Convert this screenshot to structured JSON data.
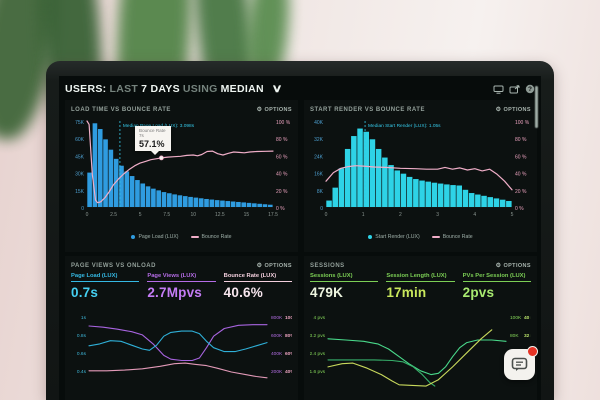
{
  "header": {
    "segments": [
      {
        "text": "USERS:",
        "dim": false
      },
      {
        "text": "LAST",
        "dim": true
      },
      {
        "text": "7 DAYS",
        "dim": false
      },
      {
        "text": "USING",
        "dim": true
      },
      {
        "text": "MEDIAN",
        "dim": false
      }
    ],
    "chevron": "∨",
    "toolbar_icons": [
      "monitor-icon",
      "share-icon",
      "help-icon"
    ]
  },
  "options_label": "OPTIONS",
  "gear_icon": "⚙",
  "panels": [
    {
      "title": "LOAD TIME VS BOUNCE RATE",
      "options": "OPTIONS"
    },
    {
      "title": "START RENDER VS BOUNCE RATE",
      "options": "OPTIONS"
    },
    {
      "title": "PAGE VIEWS VS ONLOAD",
      "options": "OPTIONS",
      "metrics": [
        {
          "label": "Page Load (LUX)",
          "value": "0.7s",
          "color": "#35b9e4",
          "value_color": "#45d0f2"
        },
        {
          "label": "Page Views (LUX)",
          "value": "2.7Mpvs",
          "color": "#b56ce6",
          "value_color": "#c47cf5"
        },
        {
          "label": "Bounce Rate (LUX)",
          "value": "40.6%",
          "color": "#f3cfdd",
          "value_color": "#f8e6ee"
        }
      ]
    },
    {
      "title": "SESSIONS",
      "options": "OPTIONS",
      "metrics": [
        {
          "label": "Sessions (LUX)",
          "value": "479K",
          "color": "#7ccf55",
          "value_color": "#eef6e0"
        },
        {
          "label": "Session Length (LUX)",
          "value": "17min",
          "color": "#7ccf55",
          "value_color": "#c9e85c"
        },
        {
          "label": "PVs Per Session (LUX)",
          "value": "2pvs",
          "color": "#7ccf55",
          "value_color": "#a8ea70"
        }
      ]
    }
  ],
  "chart_data": [
    {
      "type": "bar",
      "title": "LOAD TIME VS BOUNCE RATE",
      "bar_color": "#2f9ce0",
      "line_color": "#f0aec8",
      "median_color": "#35c8e8",
      "left_axis": [
        "75K",
        "60K",
        "45K",
        "30K",
        "15K",
        "0"
      ],
      "right_axis": [
        "100 %",
        "80 %",
        "60 %",
        "40 %",
        "20 %",
        "0 %"
      ],
      "x_ticks": [
        "0",
        "2.5",
        "5",
        "7.5",
        "10",
        "12.5",
        "15",
        "17.5"
      ],
      "x_max": 17.5,
      "bar_max": 75,
      "bar_unit": "K sessions",
      "bars": [
        30,
        73,
        68,
        59,
        50,
        42,
        36,
        31,
        27,
        23.5,
        20.5,
        18,
        16,
        14.5,
        13,
        12,
        11,
        10.2,
        9.5,
        8.8,
        8.2,
        7.6,
        7,
        6.5,
        6,
        5.6,
        5.2,
        4.8,
        4.4,
        4,
        3.6,
        3.2,
        2.8,
        2.4,
        2
      ],
      "line": [
        [
          0,
          100
        ],
        [
          0.2,
          96
        ],
        [
          0.5,
          38
        ],
        [
          0.8,
          8
        ],
        [
          1,
          5
        ],
        [
          1.3,
          6
        ],
        [
          1.7,
          11
        ],
        [
          2.1,
          18
        ],
        [
          2.5,
          26
        ],
        [
          3,
          33
        ],
        [
          3.5,
          39
        ],
        [
          4,
          44
        ],
        [
          4.5,
          48
        ],
        [
          5,
          51
        ],
        [
          5.5,
          53
        ],
        [
          6,
          55
        ],
        [
          6.5,
          56
        ],
        [
          7,
          57.1
        ],
        [
          7.6,
          58
        ],
        [
          8.2,
          58.5
        ],
        [
          8.8,
          59
        ],
        [
          9.4,
          60
        ],
        [
          10,
          60.5
        ],
        [
          10.4,
          59.5
        ],
        [
          10.8,
          61
        ],
        [
          11.3,
          64.5
        ],
        [
          11.8,
          65
        ],
        [
          12.3,
          62
        ],
        [
          12.8,
          60.5
        ],
        [
          13.3,
          62.5
        ],
        [
          13.8,
          64
        ],
        [
          14.3,
          63.5
        ],
        [
          14.8,
          63
        ],
        [
          15.3,
          64
        ],
        [
          16,
          64.5
        ],
        [
          16.8,
          64.8
        ],
        [
          17.5,
          65
        ]
      ],
      "median": {
        "x": 3.098,
        "label": "Median Page Load (LUX): 3.098s"
      },
      "tooltip": {
        "title": "Bounce Rate",
        "sub": "7s",
        "value": "57.1%",
        "point": [
          7,
          57.1
        ]
      },
      "legend": [
        {
          "label": "Page Load (LUX)",
          "marker": "dot",
          "color": "#2f9ce0"
        },
        {
          "label": "Bounce Rate",
          "marker": "line",
          "color": "#f0aec8"
        }
      ]
    },
    {
      "type": "bar",
      "title": "START RENDER VS BOUNCE RATE",
      "bar_color": "#2ed3e6",
      "line_color": "#f0aec8",
      "median_color": "#35c8e8",
      "left_axis": [
        "40K",
        "32K",
        "24K",
        "16K",
        "8K",
        "0"
      ],
      "right_axis": [
        "100 %",
        "80 %",
        "60 %",
        "40 %",
        "20 %",
        "0 %"
      ],
      "x_ticks": [
        "0",
        "1",
        "2",
        "3",
        "4",
        "5"
      ],
      "x_max": 5,
      "bar_max": 40,
      "bar_unit": "K sessions",
      "bars": [
        3,
        9,
        18,
        27,
        33,
        36.5,
        35,
        31.5,
        27,
        23,
        19.5,
        17,
        15.5,
        14,
        13,
        12.3,
        11.8,
        11.3,
        10.9,
        10.5,
        10.2,
        10,
        8,
        6.5,
        5.8,
        5.2,
        4.6,
        4,
        3.4,
        2.8
      ],
      "line": [
        [
          0,
          30
        ],
        [
          0.2,
          40
        ],
        [
          0.4,
          45
        ],
        [
          0.6,
          47
        ],
        [
          0.8,
          48
        ],
        [
          1,
          47.5
        ],
        [
          1.3,
          46.5
        ],
        [
          1.6,
          46
        ],
        [
          2,
          45
        ],
        [
          2.4,
          44.5
        ],
        [
          2.7,
          44
        ],
        [
          3,
          44
        ],
        [
          3.2,
          46
        ],
        [
          3.4,
          44
        ],
        [
          3.6,
          45.5
        ],
        [
          3.8,
          43
        ],
        [
          4,
          44.5
        ],
        [
          4.2,
          42
        ],
        [
          4.4,
          44
        ],
        [
          4.6,
          38
        ],
        [
          4.8,
          30
        ],
        [
          5,
          20
        ]
      ],
      "median": {
        "x": 1.05,
        "label": "Median Start Render (LUX): 1.05s"
      },
      "legend": [
        {
          "label": "Start Render (LUX)",
          "marker": "dot",
          "color": "#2ed3e6"
        },
        {
          "label": "Bounce Rate",
          "marker": "line",
          "color": "#f0aec8"
        }
      ]
    },
    {
      "type": "line",
      "title": "PAGE VIEWS VS ONLOAD",
      "left_ticks": [
        "1s",
        "0.8s",
        "0.6s",
        "0.4s"
      ],
      "left_color": "#3fb9dc",
      "right_ticks": [
        [
          "800K",
          "100%"
        ],
        [
          "600K",
          "80%"
        ],
        [
          "400K",
          "60%"
        ],
        [
          "200K",
          "40%"
        ]
      ],
      "rightA_color": "#b06ce0",
      "rightB_color": "#e8a0bc",
      "series": [
        {
          "name": "Page Views",
          "color": "#a864e0",
          "pts": [
            [
              0,
              86
            ],
            [
              8,
              84
            ],
            [
              16,
              81
            ],
            [
              24,
              77
            ],
            [
              30,
              72
            ],
            [
              36,
              58
            ],
            [
              42,
              40
            ],
            [
              46,
              34
            ],
            [
              52,
              32
            ],
            [
              58,
              32
            ],
            [
              62,
              36
            ],
            [
              66,
              52
            ],
            [
              70,
              70
            ],
            [
              76,
              82
            ],
            [
              84,
              87
            ],
            [
              92,
              88
            ],
            [
              100,
              88
            ]
          ]
        },
        {
          "name": "Page Load",
          "color": "#2fb0d8",
          "pts": [
            [
              0,
              55
            ],
            [
              6,
              58
            ],
            [
              12,
              63
            ],
            [
              18,
              62
            ],
            [
              24,
              56
            ],
            [
              30,
              50
            ],
            [
              34,
              48
            ],
            [
              38,
              56
            ],
            [
              42,
              70
            ],
            [
              46,
              76
            ],
            [
              52,
              78
            ],
            [
              58,
              78
            ],
            [
              62,
              74
            ],
            [
              66,
              62
            ],
            [
              70,
              52
            ],
            [
              76,
              46
            ],
            [
              82,
              46
            ],
            [
              88,
              50
            ],
            [
              94,
              55
            ],
            [
              100,
              60
            ]
          ]
        },
        {
          "name": "Bounce Rate",
          "color": "#e39ab8",
          "pts": [
            [
              0,
              16
            ],
            [
              10,
              16
            ],
            [
              20,
              17
            ],
            [
              30,
              19
            ],
            [
              40,
              23
            ],
            [
              48,
              27
            ],
            [
              54,
              28
            ],
            [
              60,
              26
            ],
            [
              66,
              24
            ],
            [
              72,
              20
            ],
            [
              80,
              14
            ],
            [
              88,
              10
            ],
            [
              94,
              7
            ],
            [
              100,
              5
            ]
          ]
        }
      ]
    },
    {
      "type": "line",
      "title": "SESSIONS",
      "left_ticks": [
        "4 pvs",
        "3.2 pvs",
        "2.4 pvs",
        "1.6 pvs"
      ],
      "left_color": "#84d659",
      "right_ticks": [
        [
          "100K",
          "40 min"
        ],
        [
          "80K",
          "32 min"
        ],
        [
          "60K",
          "24 min"
        ],
        [
          "40K",
          ""
        ]
      ],
      "rightA_color": "#84d659",
      "rightB_color": "#b9e26a",
      "series": [
        {
          "name": "PVs Per Session",
          "color": "#49d98a",
          "pts": [
            [
              0,
              66
            ],
            [
              10,
              64
            ],
            [
              20,
              62
            ],
            [
              28,
              58
            ],
            [
              34,
              50
            ],
            [
              40,
              38
            ],
            [
              46,
              26
            ],
            [
              52,
              16
            ],
            [
              58,
              10
            ],
            [
              62,
              12
            ],
            [
              66,
              22
            ],
            [
              70,
              38
            ],
            [
              74,
              52
            ],
            [
              78,
              60
            ],
            [
              84,
              64
            ],
            [
              92,
              64
            ],
            [
              100,
              62
            ]
          ]
        },
        {
          "name": "Sessions",
          "color": "#37b06b",
          "pts": [
            [
              0,
              33
            ],
            [
              12,
              33
            ],
            [
              26,
              33
            ],
            [
              36,
              32
            ],
            [
              42,
              30
            ],
            [
              48,
              22
            ],
            [
              53,
              10
            ],
            [
              57,
              -2
            ],
            [
              60,
              -8
            ]
          ]
        },
        {
          "name": "Session Length",
          "color": "#c8d95c",
          "pts": [
            [
              0,
              22
            ],
            [
              8,
              27
            ],
            [
              14,
              28
            ],
            [
              22,
              20
            ],
            [
              30,
              10
            ],
            [
              36,
              0
            ],
            [
              40,
              -6
            ],
            [
              55,
              -8
            ],
            [
              62,
              2
            ],
            [
              70,
              22
            ],
            [
              78,
              44
            ],
            [
              86,
              66
            ],
            [
              92,
              80
            ]
          ]
        }
      ]
    }
  ],
  "chat_widget": {
    "badge_color": "#e53325"
  }
}
